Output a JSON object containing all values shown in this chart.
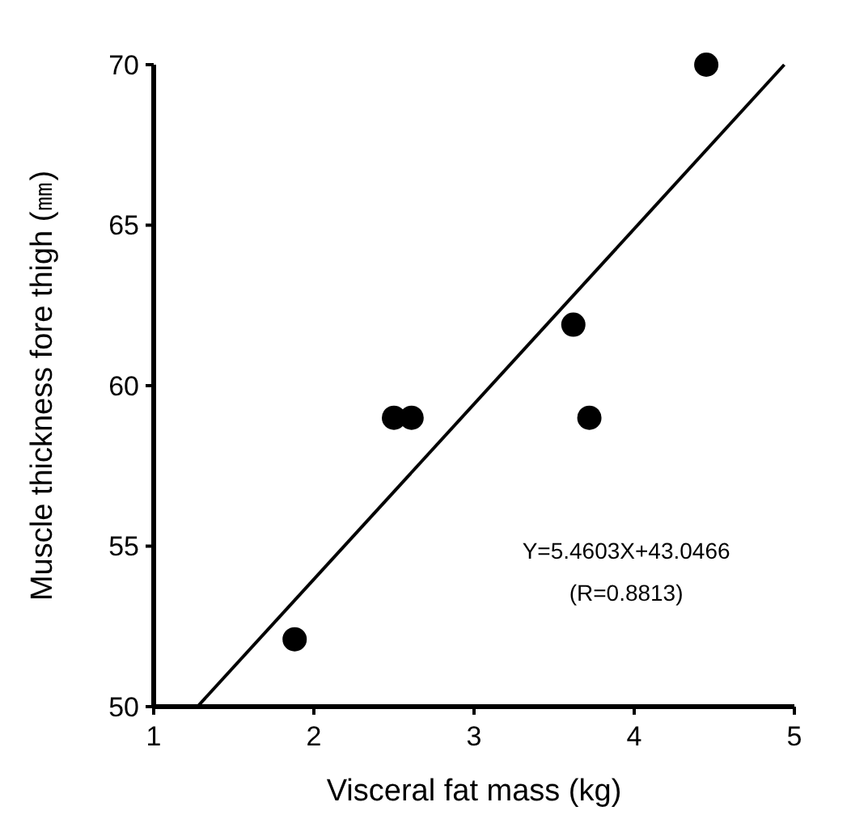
{
  "chart_data": {
    "type": "scatter",
    "xlabel": "Visceral fat mass (kg)",
    "ylabel": "Muscle thickness fore thigh (㎜)",
    "xlim": [
      1,
      5
    ],
    "ylim": [
      50,
      70
    ],
    "xticks": [
      1,
      2,
      3,
      4,
      5
    ],
    "yticks": [
      50,
      55,
      60,
      65,
      70
    ],
    "grid": false,
    "series": [
      {
        "color": "#000000",
        "marker": "circle",
        "x": [
          1.88,
          2.5,
          2.61,
          3.62,
          3.72,
          4.45
        ],
        "values": [
          52.1,
          59.0,
          59.0,
          61.9,
          59.0,
          70.0
        ]
      },
      {
        "type": "line",
        "color": "#000000",
        "marker": "none",
        "line_style": "solid",
        "x": [
          1.273,
          4.937
        ],
        "values": [
          50,
          70
        ]
      }
    ],
    "annotations": [
      "Y=5.4603X+43.0466",
      "(R=0.8813)"
    ]
  }
}
